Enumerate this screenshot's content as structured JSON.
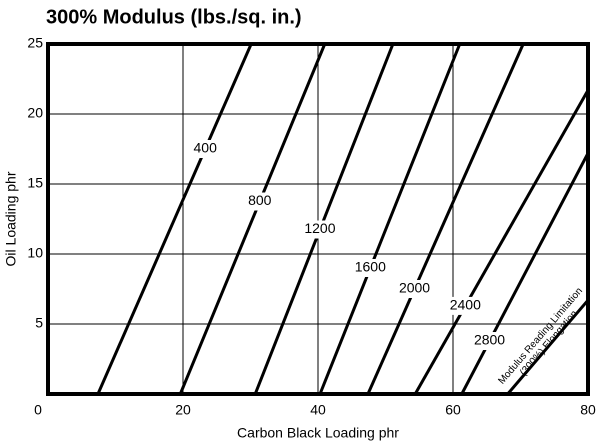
{
  "chart_data": {
    "type": "line",
    "title": "300% Modulus (lbs./sq. in.)",
    "x_label": "Carbon Black Loading phr",
    "y_label": "Oil Loading phr",
    "xlim": [
      0,
      80
    ],
    "ylim": [
      0,
      25
    ],
    "xticks": [
      0,
      20,
      40,
      60,
      80
    ],
    "yticks": [
      5,
      10,
      15,
      20,
      25
    ],
    "grid": true,
    "color": "#000000",
    "series": [
      {
        "name": "400",
        "x": [
          7.4,
          30.1
        ],
        "values": [
          0,
          25
        ]
      },
      {
        "name": "800",
        "x": [
          19.6,
          41.0
        ],
        "values": [
          0,
          25
        ]
      },
      {
        "name": "1200",
        "x": [
          30.7,
          51.1
        ],
        "values": [
          0,
          25
        ]
      },
      {
        "name": "1600",
        "x": [
          40.3,
          61.0
        ],
        "values": [
          0,
          25
        ]
      },
      {
        "name": "2000",
        "x": [
          47.4,
          70.4
        ],
        "values": [
          0,
          25
        ]
      },
      {
        "name": "2400",
        "x": [
          54.4,
          80
        ],
        "values": [
          0,
          21.7
        ]
      },
      {
        "name": "2800",
        "x": [
          61.3,
          80
        ],
        "values": [
          0,
          17.2
        ]
      },
      {
        "x": [
          68.1,
          80
        ],
        "values": [
          0,
          6.7
        ]
      }
    ],
    "annotation": [
      "Modulus Reading Limitation",
      "(300%) Elongation"
    ]
  }
}
